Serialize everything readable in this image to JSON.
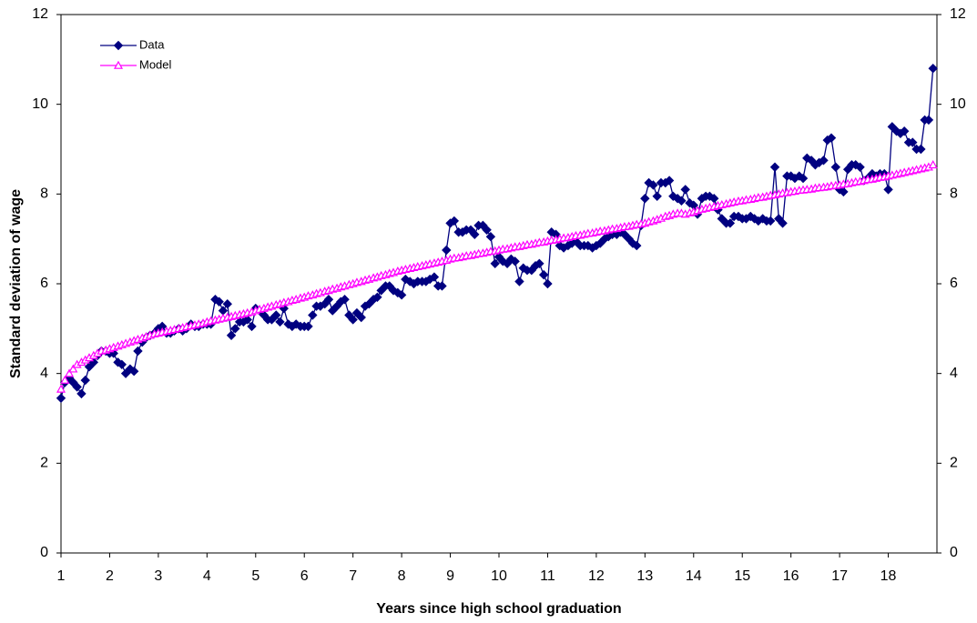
{
  "chart_data": {
    "type": "line",
    "x_label": "Years since high school graduation",
    "y_label": "Standard deviation of wage",
    "xlim": [
      1,
      19
    ],
    "xticks": [
      1,
      2,
      3,
      4,
      5,
      6,
      7,
      8,
      9,
      10,
      11,
      12,
      13,
      14,
      15,
      16,
      17,
      18
    ],
    "ylim": [
      0,
      12
    ],
    "yticks": [
      0,
      2,
      4,
      6,
      8,
      10,
      12
    ],
    "y2lim": [
      0,
      12
    ],
    "y2ticks": [
      0,
      2,
      4,
      6,
      8,
      10,
      12
    ],
    "grid": false,
    "legend": "upper left",
    "x": [
      1,
      1.08,
      1.17,
      1.25,
      1.33,
      1.42,
      1.5,
      1.58,
      1.67,
      1.75,
      1.83,
      1.92,
      2,
      2.08,
      2.17,
      2.25,
      2.33,
      2.42,
      2.5,
      2.58,
      2.67,
      2.75,
      2.83,
      2.92,
      3,
      3.08,
      3.17,
      3.25,
      3.33,
      3.42,
      3.5,
      3.58,
      3.67,
      3.75,
      3.83,
      3.92,
      4,
      4.08,
      4.17,
      4.25,
      4.33,
      4.42,
      4.5,
      4.58,
      4.67,
      4.75,
      4.83,
      4.92,
      5,
      5.08,
      5.17,
      5.25,
      5.33,
      5.42,
      5.5,
      5.58,
      5.67,
      5.75,
      5.83,
      5.92,
      6,
      6.08,
      6.17,
      6.25,
      6.33,
      6.42,
      6.5,
      6.58,
      6.67,
      6.75,
      6.83,
      6.92,
      7,
      7.08,
      7.17,
      7.25,
      7.33,
      7.42,
      7.5,
      7.58,
      7.67,
      7.75,
      7.83,
      7.92,
      8,
      8.08,
      8.17,
      8.25,
      8.33,
      8.42,
      8.5,
      8.58,
      8.67,
      8.75,
      8.83,
      8.92,
      9,
      9.08,
      9.17,
      9.25,
      9.33,
      9.42,
      9.5,
      9.58,
      9.67,
      9.75,
      9.83,
      9.92,
      10,
      10.08,
      10.17,
      10.25,
      10.33,
      10.42,
      10.5,
      10.58,
      10.67,
      10.75,
      10.83,
      10.92,
      11,
      11.08,
      11.17,
      11.25,
      11.33,
      11.42,
      11.5,
      11.58,
      11.67,
      11.75,
      11.83,
      11.92,
      12,
      12.08,
      12.17,
      12.25,
      12.33,
      12.42,
      12.5,
      12.58,
      12.67,
      12.75,
      12.83,
      12.92,
      13,
      13.08,
      13.17,
      13.25,
      13.33,
      13.42,
      13.5,
      13.58,
      13.67,
      13.75,
      13.83,
      13.92,
      14,
      14.08,
      14.17,
      14.25,
      14.33,
      14.42,
      14.5,
      14.58,
      14.67,
      14.75,
      14.83,
      14.92,
      15,
      15.08,
      15.17,
      15.25,
      15.33,
      15.42,
      15.5,
      15.58,
      15.67,
      15.75,
      15.83,
      15.92,
      16,
      16.08,
      16.17,
      16.25,
      16.33,
      16.42,
      16.5,
      16.58,
      16.67,
      16.75,
      16.83,
      16.92,
      17,
      17.08,
      17.17,
      17.25,
      17.33,
      17.42,
      17.5,
      17.58,
      17.67,
      17.75,
      17.83,
      17.92,
      18,
      18.08,
      18.17,
      18.25,
      18.33,
      18.42,
      18.5,
      18.58,
      18.67,
      18.75,
      18.83,
      18.92
    ],
    "series": [
      {
        "name": "Data",
        "color": "#000080",
        "marker": "diamond",
        "values": [
          3.45,
          3.8,
          3.9,
          3.8,
          3.7,
          3.55,
          3.85,
          4.15,
          4.25,
          4.4,
          4.5,
          4.5,
          4.45,
          4.45,
          4.25,
          4.2,
          4.0,
          4.1,
          4.05,
          4.5,
          4.7,
          4.8,
          4.85,
          4.9,
          5.0,
          5.05,
          4.9,
          4.9,
          4.95,
          5.0,
          4.95,
          5.0,
          5.1,
          5.05,
          5.05,
          5.1,
          5.1,
          5.1,
          5.65,
          5.6,
          5.4,
          5.55,
          4.85,
          5.0,
          5.15,
          5.15,
          5.2,
          5.05,
          5.45,
          5.4,
          5.3,
          5.2,
          5.2,
          5.3,
          5.15,
          5.45,
          5.1,
          5.05,
          5.1,
          5.05,
          5.05,
          5.05,
          5.3,
          5.5,
          5.5,
          5.55,
          5.65,
          5.4,
          5.5,
          5.6,
          5.65,
          5.3,
          5.2,
          5.35,
          5.25,
          5.5,
          5.55,
          5.65,
          5.7,
          5.85,
          5.95,
          5.95,
          5.85,
          5.8,
          5.75,
          6.1,
          6.05,
          6.0,
          6.05,
          6.05,
          6.05,
          6.1,
          6.15,
          5.95,
          5.95,
          6.75,
          7.35,
          7.4,
          7.15,
          7.15,
          7.2,
          7.2,
          7.1,
          7.3,
          7.3,
          7.2,
          7.05,
          6.45,
          6.6,
          6.5,
          6.45,
          6.55,
          6.5,
          6.05,
          6.35,
          6.3,
          6.3,
          6.4,
          6.45,
          6.2,
          6.0,
          7.15,
          7.1,
          6.85,
          6.8,
          6.85,
          6.9,
          6.95,
          6.85,
          6.85,
          6.85,
          6.8,
          6.85,
          6.9,
          7.0,
          7.05,
          7.1,
          7.1,
          7.15,
          7.1,
          7.0,
          6.9,
          6.85,
          7.3,
          7.9,
          8.25,
          8.2,
          7.95,
          8.25,
          8.25,
          8.3,
          7.95,
          7.9,
          7.85,
          8.1,
          7.8,
          7.75,
          7.55,
          7.9,
          7.95,
          7.95,
          7.9,
          7.65,
          7.45,
          7.35,
          7.35,
          7.5,
          7.5,
          7.45,
          7.45,
          7.5,
          7.45,
          7.4,
          7.45,
          7.4,
          7.4,
          8.6,
          7.45,
          7.35,
          8.4,
          8.4,
          8.35,
          8.4,
          8.35,
          8.8,
          8.75,
          8.65,
          8.7,
          8.75,
          9.2,
          9.25,
          8.6,
          8.1,
          8.05,
          8.55,
          8.65,
          8.65,
          8.6,
          8.3,
          8.35,
          8.45,
          8.4,
          8.45,
          8.45,
          8.1,
          9.5,
          9.4,
          9.35,
          9.4,
          9.15,
          9.15,
          9.0,
          9.0,
          9.65,
          9.65,
          10.8
        ]
      },
      {
        "name": "Model",
        "color": "#ff00ff",
        "marker": "triangle",
        "values": [
          3.65,
          3.85,
          4.0,
          4.1,
          4.2,
          4.25,
          4.3,
          4.35,
          4.4,
          4.45,
          4.5,
          4.52,
          4.55,
          4.58,
          4.61,
          4.64,
          4.67,
          4.7,
          4.73,
          4.76,
          4.79,
          4.82,
          4.85,
          4.88,
          4.9,
          4.92,
          4.94,
          4.96,
          4.98,
          5.0,
          5.02,
          5.04,
          5.06,
          5.08,
          5.1,
          5.12,
          5.15,
          5.17,
          5.19,
          5.21,
          5.23,
          5.25,
          5.27,
          5.29,
          5.31,
          5.33,
          5.35,
          5.37,
          5.4,
          5.43,
          5.45,
          5.48,
          5.5,
          5.53,
          5.55,
          5.58,
          5.6,
          5.63,
          5.65,
          5.68,
          5.7,
          5.73,
          5.75,
          5.78,
          5.8,
          5.83,
          5.85,
          5.88,
          5.9,
          5.93,
          5.95,
          5.98,
          6.0,
          6.03,
          6.05,
          6.08,
          6.1,
          6.13,
          6.15,
          6.18,
          6.2,
          6.23,
          6.25,
          6.28,
          6.3,
          6.32,
          6.34,
          6.36,
          6.38,
          6.4,
          6.42,
          6.44,
          6.46,
          6.48,
          6.5,
          6.52,
          6.55,
          6.57,
          6.58,
          6.6,
          6.62,
          6.63,
          6.65,
          6.67,
          6.68,
          6.7,
          6.72,
          6.73,
          6.75,
          6.77,
          6.78,
          6.8,
          6.82,
          6.83,
          6.85,
          6.87,
          6.88,
          6.9,
          6.92,
          6.93,
          6.95,
          6.97,
          6.98,
          7.0,
          7.02,
          7.03,
          7.05,
          7.07,
          7.08,
          7.1,
          7.12,
          7.13,
          7.15,
          7.17,
          7.18,
          7.2,
          7.22,
          7.23,
          7.25,
          7.27,
          7.28,
          7.3,
          7.32,
          7.33,
          7.35,
          7.38,
          7.4,
          7.43,
          7.46,
          7.5,
          7.52,
          7.55,
          7.57,
          7.57,
          7.55,
          7.58,
          7.6,
          7.63,
          7.66,
          7.68,
          7.7,
          7.72,
          7.74,
          7.76,
          7.78,
          7.8,
          7.82,
          7.84,
          7.85,
          7.87,
          7.88,
          7.9,
          7.92,
          7.93,
          7.95,
          7.97,
          7.98,
          8.0,
          8.02,
          8.03,
          8.05,
          8.06,
          8.08,
          8.09,
          8.1,
          8.11,
          8.13,
          8.14,
          8.15,
          8.16,
          8.18,
          8.19,
          8.2,
          8.22,
          8.23,
          8.25,
          8.27,
          8.28,
          8.3,
          8.32,
          8.33,
          8.35,
          8.37,
          8.38,
          8.4,
          8.42,
          8.44,
          8.46,
          8.48,
          8.5,
          8.52,
          8.54,
          8.56,
          8.58,
          8.6,
          8.65
        ]
      }
    ]
  }
}
